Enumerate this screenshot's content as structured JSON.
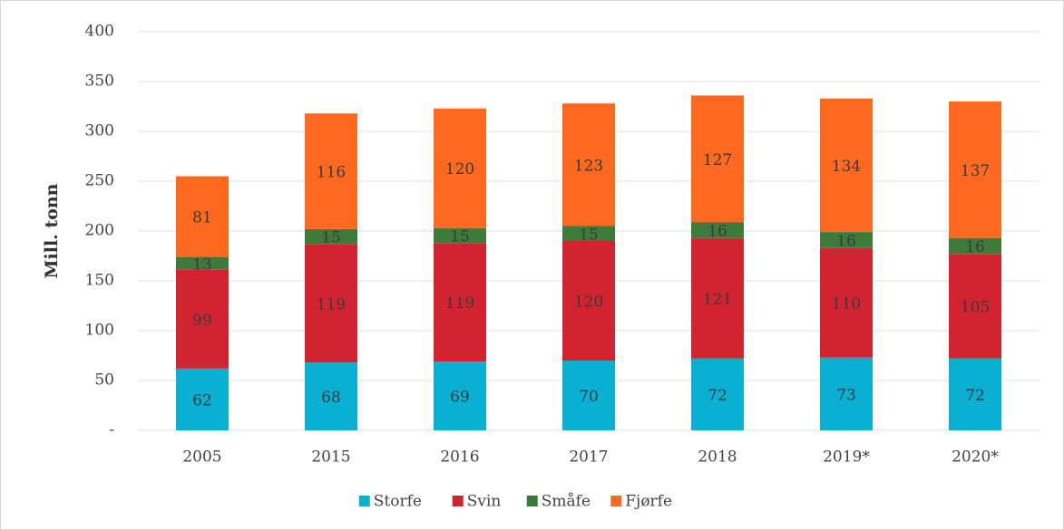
{
  "chart_data": {
    "type": "stacked_bar",
    "y_label": "Mill. tonn",
    "categories": [
      "2005",
      "2015",
      "2016",
      "2017",
      "2018",
      "2019*",
      "2020*"
    ],
    "series": [
      {
        "name": "Storfe",
        "color": "#0ab0d2",
        "values": [
          62,
          68,
          69,
          70,
          72,
          73,
          72
        ]
      },
      {
        "name": "Svin",
        "color": "#d12430",
        "values": [
          99,
          119,
          119,
          120,
          121,
          110,
          105
        ]
      },
      {
        "name": "Småfe",
        "color": "#3d7b3a",
        "values": [
          13,
          15,
          15,
          15,
          16,
          16,
          16
        ]
      },
      {
        "name": "Fjørfe",
        "color": "#fd6a1f",
        "values": [
          81,
          116,
          120,
          123,
          127,
          134,
          137
        ]
      }
    ],
    "ylim": [
      0,
      400
    ],
    "yticks": [
      {
        "value": 0,
        "label": "-"
      },
      50,
      100,
      150,
      200,
      250,
      300,
      350,
      400
    ],
    "grid": true
  }
}
